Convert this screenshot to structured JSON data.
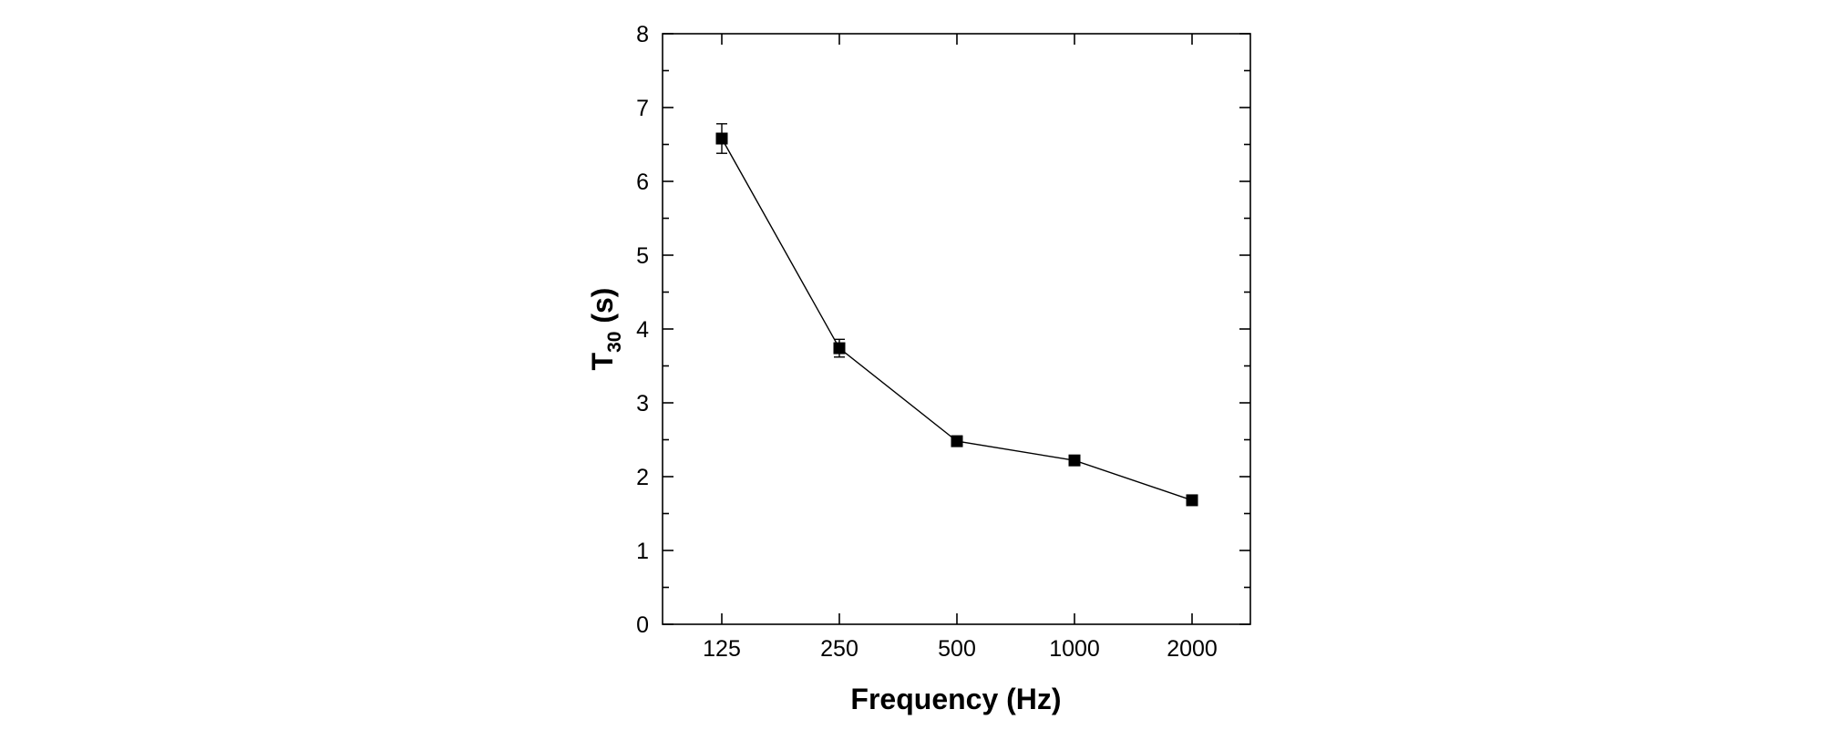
{
  "chart_data": {
    "type": "line",
    "title": "",
    "xlabel": "Frequency (Hz)",
    "ylabel": {
      "main": "T",
      "subscript": "30",
      "suffix": " (s)"
    },
    "categories": [
      "125",
      "250",
      "500",
      "1000",
      "2000"
    ],
    "series": [
      {
        "name": "T30",
        "values": [
          6.58,
          3.74,
          2.48,
          2.22,
          1.68
        ],
        "errors": [
          0.2,
          0.12,
          0.07,
          0.05,
          0.04
        ],
        "marker": "square",
        "color": "#000000"
      }
    ],
    "ylim": [
      0,
      8
    ],
    "yticks": [
      "0",
      "1",
      "2",
      "3",
      "4",
      "5",
      "6",
      "7",
      "8"
    ],
    "grid": false,
    "legend": "none"
  }
}
